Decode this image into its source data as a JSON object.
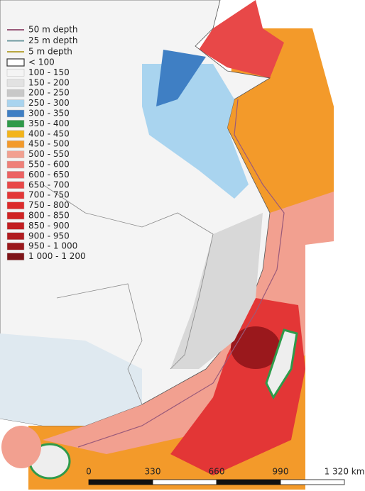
{
  "legend": {
    "depth_lines": [
      {
        "label": "50 m depth",
        "color": "#9a5a7a"
      },
      {
        "label": "25 m depth",
        "color": "#6f9aa0"
      },
      {
        "label": "5 m depth",
        "color": "#b8a640"
      }
    ],
    "classes": [
      {
        "label": "< 100",
        "color": "#ffffff"
      },
      {
        "label": "100 - 150",
        "color": "#f4f4f4"
      },
      {
        "label": "150 - 200",
        "color": "#e2e2e2"
      },
      {
        "label": "200 - 250",
        "color": "#c8c8c8"
      },
      {
        "label": "250 - 300",
        "color": "#a9d4ef"
      },
      {
        "label": "300 - 350",
        "color": "#3f7fc4"
      },
      {
        "label": "350 - 400",
        "color": "#2f9a4a"
      },
      {
        "label": "400 - 450",
        "color": "#f3b41a"
      },
      {
        "label": "450 - 500",
        "color": "#f39a2a"
      },
      {
        "label": "500 - 550",
        "color": "#f2a090"
      },
      {
        "label": "550 - 600",
        "color": "#ef8078"
      },
      {
        "label": "600 - 650",
        "color": "#ec6262"
      },
      {
        "label": "650 - 700",
        "color": "#e84848"
      },
      {
        "label": "700 - 750",
        "color": "#e33636"
      },
      {
        "label": "750 - 800",
        "color": "#dc2a2a"
      },
      {
        "label": "800 - 850",
        "color": "#d02424"
      },
      {
        "label": "850 - 900",
        "color": "#c21f22"
      },
      {
        "label": "900 - 950",
        "color": "#b01c20"
      },
      {
        "label": "950 - 1 000",
        "color": "#9a181c"
      },
      {
        "label": "1 000 - 1 200",
        "color": "#7e1418"
      }
    ]
  },
  "scale_bar": {
    "labels": [
      "0",
      "330",
      "660",
      "990",
      "1 320 km"
    ]
  }
}
